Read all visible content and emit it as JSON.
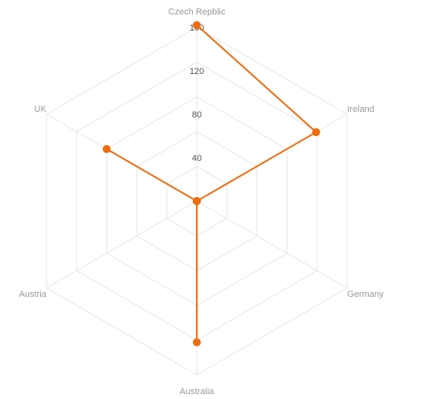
{
  "chart_data": {
    "type": "radar",
    "categories": [
      "Czech Repblic",
      "Ireland",
      "Germany",
      "Australia",
      "Austria",
      "UK"
    ],
    "series": [
      {
        "values": [
          162,
          127,
          0,
          130,
          0,
          96
        ]
      }
    ],
    "r_range": [
      0,
      160
    ],
    "r_ticks": [
      40,
      80,
      120,
      160
    ],
    "r_tick_labels": [
      "40",
      "80",
      "120",
      "160"
    ],
    "grid": true,
    "polygon_closed": false,
    "colors": {
      "series": "#ef6c0e",
      "grid": "#e6e6e6",
      "axis_label": "#9a9a9a",
      "tick_label": "#555555"
    }
  }
}
